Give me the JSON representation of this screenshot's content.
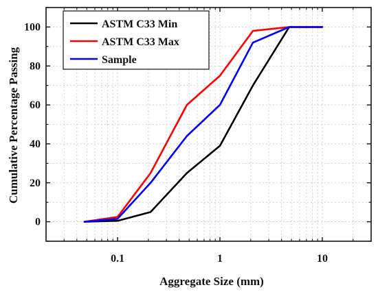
{
  "chart_data": {
    "type": "line",
    "xlabel": "Aggregate Size (mm)",
    "ylabel": "Cumulative Percentage Passing",
    "xscale": "log",
    "xlim": [
      0.02,
      30
    ],
    "ylim": [
      -10,
      110
    ],
    "xticks": [
      0.1,
      1,
      10
    ],
    "xtick_labels": [
      "0.1",
      "1",
      "10"
    ],
    "yticks": [
      0,
      20,
      40,
      60,
      80,
      100
    ],
    "ytick_labels": [
      "0",
      "20",
      "40",
      "60",
      "80",
      "100"
    ],
    "grid": true,
    "legend_position": "top-left",
    "series": [
      {
        "name": "ASTM C33 Min",
        "color": "#000000",
        "x": [
          0.0475,
          0.1,
          0.21,
          0.475,
          1.0,
          2.1,
          4.75,
          10
        ],
        "y": [
          0,
          0.5,
          5,
          25,
          39,
          70,
          100,
          100
        ]
      },
      {
        "name": "ASTM C33 Max",
        "color": "#ff0000",
        "x": [
          0.0475,
          0.1,
          0.21,
          0.475,
          1.0,
          2.1,
          4.75,
          10
        ],
        "y": [
          0,
          2.5,
          25,
          60,
          75,
          98,
          100,
          100
        ]
      },
      {
        "name": "Sample",
        "color": "#0000ff",
        "x": [
          0.0475,
          0.1,
          0.21,
          0.475,
          1.0,
          2.1,
          4.75,
          10
        ],
        "y": [
          0,
          1.5,
          20,
          44,
          60,
          92,
          100,
          100
        ]
      }
    ]
  }
}
